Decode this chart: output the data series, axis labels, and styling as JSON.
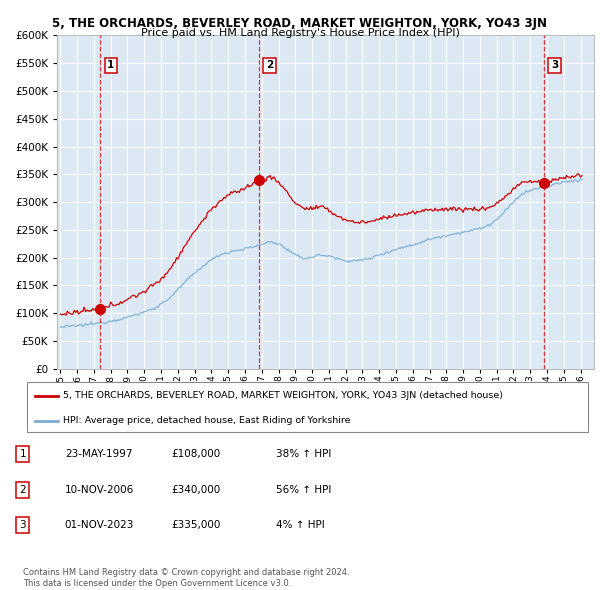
{
  "title": "5, THE ORCHARDS, BEVERLEY ROAD, MARKET WEIGHTON, YORK, YO43 3JN",
  "subtitle": "Price paid vs. HM Land Registry's House Price Index (HPI)",
  "background_color": "#dce9f5",
  "grid_color": "#ffffff",
  "ylim": [
    0,
    600000
  ],
  "yticks": [
    0,
    50000,
    100000,
    150000,
    200000,
    250000,
    300000,
    350000,
    400000,
    450000,
    500000,
    550000,
    600000
  ],
  "xlim_start": 1994.8,
  "xlim_end": 2026.8,
  "xticks": [
    1995,
    1996,
    1997,
    1998,
    1999,
    2000,
    2001,
    2002,
    2003,
    2004,
    2005,
    2006,
    2007,
    2008,
    2009,
    2010,
    2011,
    2012,
    2013,
    2014,
    2015,
    2016,
    2017,
    2018,
    2019,
    2020,
    2021,
    2022,
    2023,
    2024,
    2025,
    2026
  ],
  "legend_line1": "5, THE ORCHARDS, BEVERLEY ROAD, MARKET WEIGHTON, YORK, YO43 3JN (detached house)",
  "legend_line2": "HPI: Average price, detached house, East Riding of Yorkshire",
  "sale1_date": "23-MAY-1997",
  "sale1_year": 1997.39,
  "sale1_price": 108000,
  "sale1_label": "38% ↑ HPI",
  "sale2_date": "10-NOV-2006",
  "sale2_year": 2006.86,
  "sale2_price": 340000,
  "sale2_label": "56% ↑ HPI",
  "sale3_date": "01-NOV-2023",
  "sale3_year": 2023.83,
  "sale3_price": 335000,
  "sale3_label": "4% ↑ HPI",
  "footer1": "Contains HM Land Registry data © Crown copyright and database right 2024.",
  "footer2": "This data is licensed under the Open Government Licence v3.0.",
  "red_line_color": "#cc0000",
  "hpi_line_color": "#7aadd4"
}
